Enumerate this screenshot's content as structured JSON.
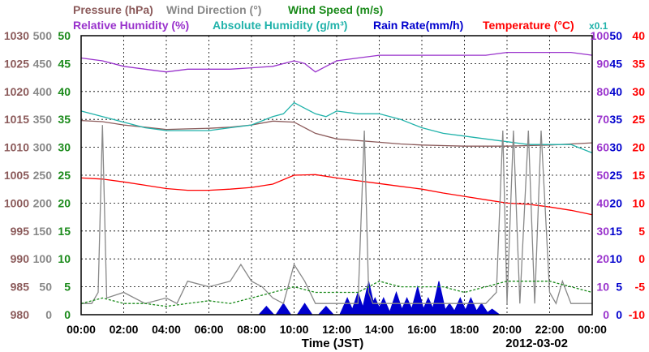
{
  "legend": {
    "pressure": "Pressure (hPa)",
    "wind_direction": "Wind Direction (°)",
    "wind_speed": "Wind Speed (m/s)",
    "relative_humidity": "Relative Humidity (%)",
    "absolute_humidity": "Absolute Humidity (g/m³)",
    "rain_rate": "Rain Rate(mm/h)",
    "temperature": "Temperature (°C)",
    "abs_humidity_scale_note": "x0.1"
  },
  "colors": {
    "pressure": "#8b5a5a",
    "wind_direction": "#888888",
    "wind_speed": "#1a8a1a",
    "relative_humidity": "#9932cc",
    "absolute_humidity": "#20b2aa",
    "rain_rate": "#0000cd",
    "temperature": "#ff0000",
    "grid": "#000000"
  },
  "chart_data": {
    "type": "line",
    "xlabel": "Time (JST)",
    "date": "2012-03-02",
    "x_ticks": [
      "00:00",
      "02:00",
      "04:00",
      "06:00",
      "08:00",
      "10:00",
      "12:00",
      "14:00",
      "16:00",
      "18:00",
      "20:00",
      "22:00",
      "00:00"
    ],
    "xlim_hours": [
      0,
      24
    ],
    "grid": true,
    "axes": {
      "pressure": {
        "side": "left",
        "ylim": [
          980,
          1030
        ],
        "ticks": [
          980,
          985,
          990,
          995,
          1000,
          1005,
          1010,
          1015,
          1020,
          1025,
          1030
        ]
      },
      "wind_direction": {
        "side": "left",
        "ylim": [
          0,
          500
        ],
        "ticks": [
          0,
          50,
          100,
          150,
          200,
          250,
          300,
          350,
          400,
          450,
          500
        ]
      },
      "wind_speed": {
        "side": "left",
        "ylim": [
          0,
          50
        ],
        "ticks": [
          0,
          5,
          10,
          15,
          20,
          25,
          30,
          35,
          40,
          45,
          50
        ]
      },
      "humidity": {
        "side": "right",
        "ylim": [
          0,
          100
        ],
        "ticks": [
          0,
          10,
          20,
          30,
          40,
          50,
          60,
          70,
          80,
          90,
          100
        ]
      },
      "rain_rate": {
        "side": "right",
        "ylim": [
          0,
          50
        ],
        "ticks": [
          0,
          5,
          10,
          15,
          20,
          25,
          30,
          35,
          40,
          45,
          50
        ]
      },
      "temperature": {
        "side": "right",
        "ylim": [
          -10,
          40
        ],
        "ticks": [
          -10,
          -5,
          0,
          5,
          10,
          15,
          20,
          25,
          30,
          35,
          40
        ]
      }
    },
    "series": [
      {
        "name": "Pressure (hPa)",
        "axis": "pressure",
        "x": [
          0,
          1,
          2,
          3,
          4,
          5,
          6,
          7,
          8,
          9,
          10,
          11,
          12,
          13,
          14,
          15,
          16,
          17,
          18,
          19,
          20,
          21,
          22,
          23,
          24
        ],
        "y": [
          1014.8,
          1014.6,
          1014.0,
          1013.6,
          1013.2,
          1013.3,
          1013.4,
          1013.6,
          1014.0,
          1014.7,
          1014.5,
          1012.5,
          1011.5,
          1011.2,
          1010.9,
          1010.6,
          1010.4,
          1010.3,
          1010.2,
          1010.2,
          1010.2,
          1010.3,
          1010.4,
          1010.6,
          1010.8
        ]
      },
      {
        "name": "Relative Humidity (%)",
        "axis": "humidity",
        "x": [
          0,
          1,
          2,
          3,
          4,
          5,
          6,
          7,
          8,
          9,
          10,
          10.5,
          11,
          11.5,
          12,
          13,
          14,
          15,
          16,
          17,
          18,
          19,
          20,
          21,
          22,
          23,
          24
        ],
        "y": [
          92,
          91,
          89,
          88,
          87,
          88,
          88,
          88,
          88.5,
          89,
          91,
          90,
          87,
          89,
          91,
          92,
          93,
          93,
          93,
          93,
          93,
          93,
          94,
          94,
          94,
          94,
          93
        ]
      },
      {
        "name": "Absolute Humidity (g/m³)",
        "axis": "humidity",
        "x": [
          0,
          1,
          2,
          3,
          4,
          5,
          6,
          7,
          8,
          9,
          9.5,
          10,
          10.5,
          11,
          11.5,
          12,
          13,
          14,
          15,
          16,
          17,
          18,
          19,
          20,
          21,
          22,
          23,
          24
        ],
        "y": [
          73,
          71,
          69,
          67,
          66,
          66,
          66,
          67,
          68,
          71,
          72,
          76,
          74,
          72,
          71,
          73,
          72,
          72,
          70,
          67,
          65,
          64,
          63,
          62,
          61,
          61,
          61,
          58
        ]
      },
      {
        "name": "Temperature (°C)",
        "axis": "temperature",
        "x": [
          0,
          1,
          2,
          3,
          4,
          5,
          6,
          7,
          8,
          9,
          10,
          11,
          12,
          13,
          14,
          15,
          16,
          17,
          18,
          19,
          20,
          21,
          22,
          23,
          24
        ],
        "y": [
          14.5,
          14.3,
          13.8,
          13.2,
          12.6,
          12.3,
          12.3,
          12.5,
          12.8,
          13.4,
          15.0,
          15.1,
          14.5,
          14.0,
          13.5,
          13.0,
          12.5,
          11.8,
          11.2,
          10.6,
          10.0,
          9.8,
          9.3,
          8.7,
          7.9
        ]
      },
      {
        "name": "Wind Direction (°)",
        "axis": "wind_direction",
        "x": [
          0,
          0.5,
          0.8,
          1.0,
          1.2,
          2,
          3,
          4,
          4.5,
          5,
          6,
          7,
          7.5,
          8,
          8.5,
          9,
          9.5,
          10,
          10.5,
          11,
          12,
          13,
          13.3,
          13.5,
          13.7,
          14,
          15,
          16,
          17,
          18,
          19,
          19.5,
          19.8,
          20,
          20.3,
          20.6,
          21,
          21.3,
          21.6,
          22,
          22.3,
          22.6,
          23,
          24
        ],
        "y": [
          20,
          20,
          40,
          340,
          30,
          40,
          20,
          30,
          20,
          60,
          50,
          60,
          90,
          60,
          50,
          30,
          20,
          90,
          60,
          20,
          20,
          20,
          330,
          40,
          20,
          20,
          20,
          20,
          20,
          20,
          20,
          40,
          330,
          20,
          330,
          20,
          330,
          20,
          330,
          40,
          20,
          60,
          20,
          20
        ]
      },
      {
        "name": "Wind Speed (m/s)",
        "axis": "wind_speed",
        "x": [
          0,
          1,
          2,
          3,
          4,
          5,
          6,
          7,
          8,
          9,
          10,
          11,
          12,
          13,
          14,
          15,
          16,
          17,
          18,
          19,
          20,
          21,
          22,
          23,
          24
        ],
        "y": [
          2,
          3,
          2,
          2,
          1.5,
          2,
          2.5,
          2,
          3,
          4,
          5,
          4,
          4,
          4,
          6,
          5,
          5,
          5,
          4,
          5,
          6,
          6,
          6,
          5,
          4
        ]
      },
      {
        "name": "Rain Rate(mm/h)",
        "axis": "rain_rate",
        "x": [
          8.7,
          9.5,
          10.5,
          11.5,
          12.5,
          13,
          13.5,
          13.8,
          14.2,
          14.8,
          15.3,
          15.8,
          16.3,
          16.8,
          17.3,
          17.8,
          18.3,
          18.8,
          19.3
        ],
        "y": [
          1.5,
          2,
          2,
          1.5,
          3,
          4,
          6,
          3,
          3,
          4,
          3,
          5,
          3,
          6,
          2,
          3,
          3,
          2,
          1
        ]
      }
    ]
  }
}
